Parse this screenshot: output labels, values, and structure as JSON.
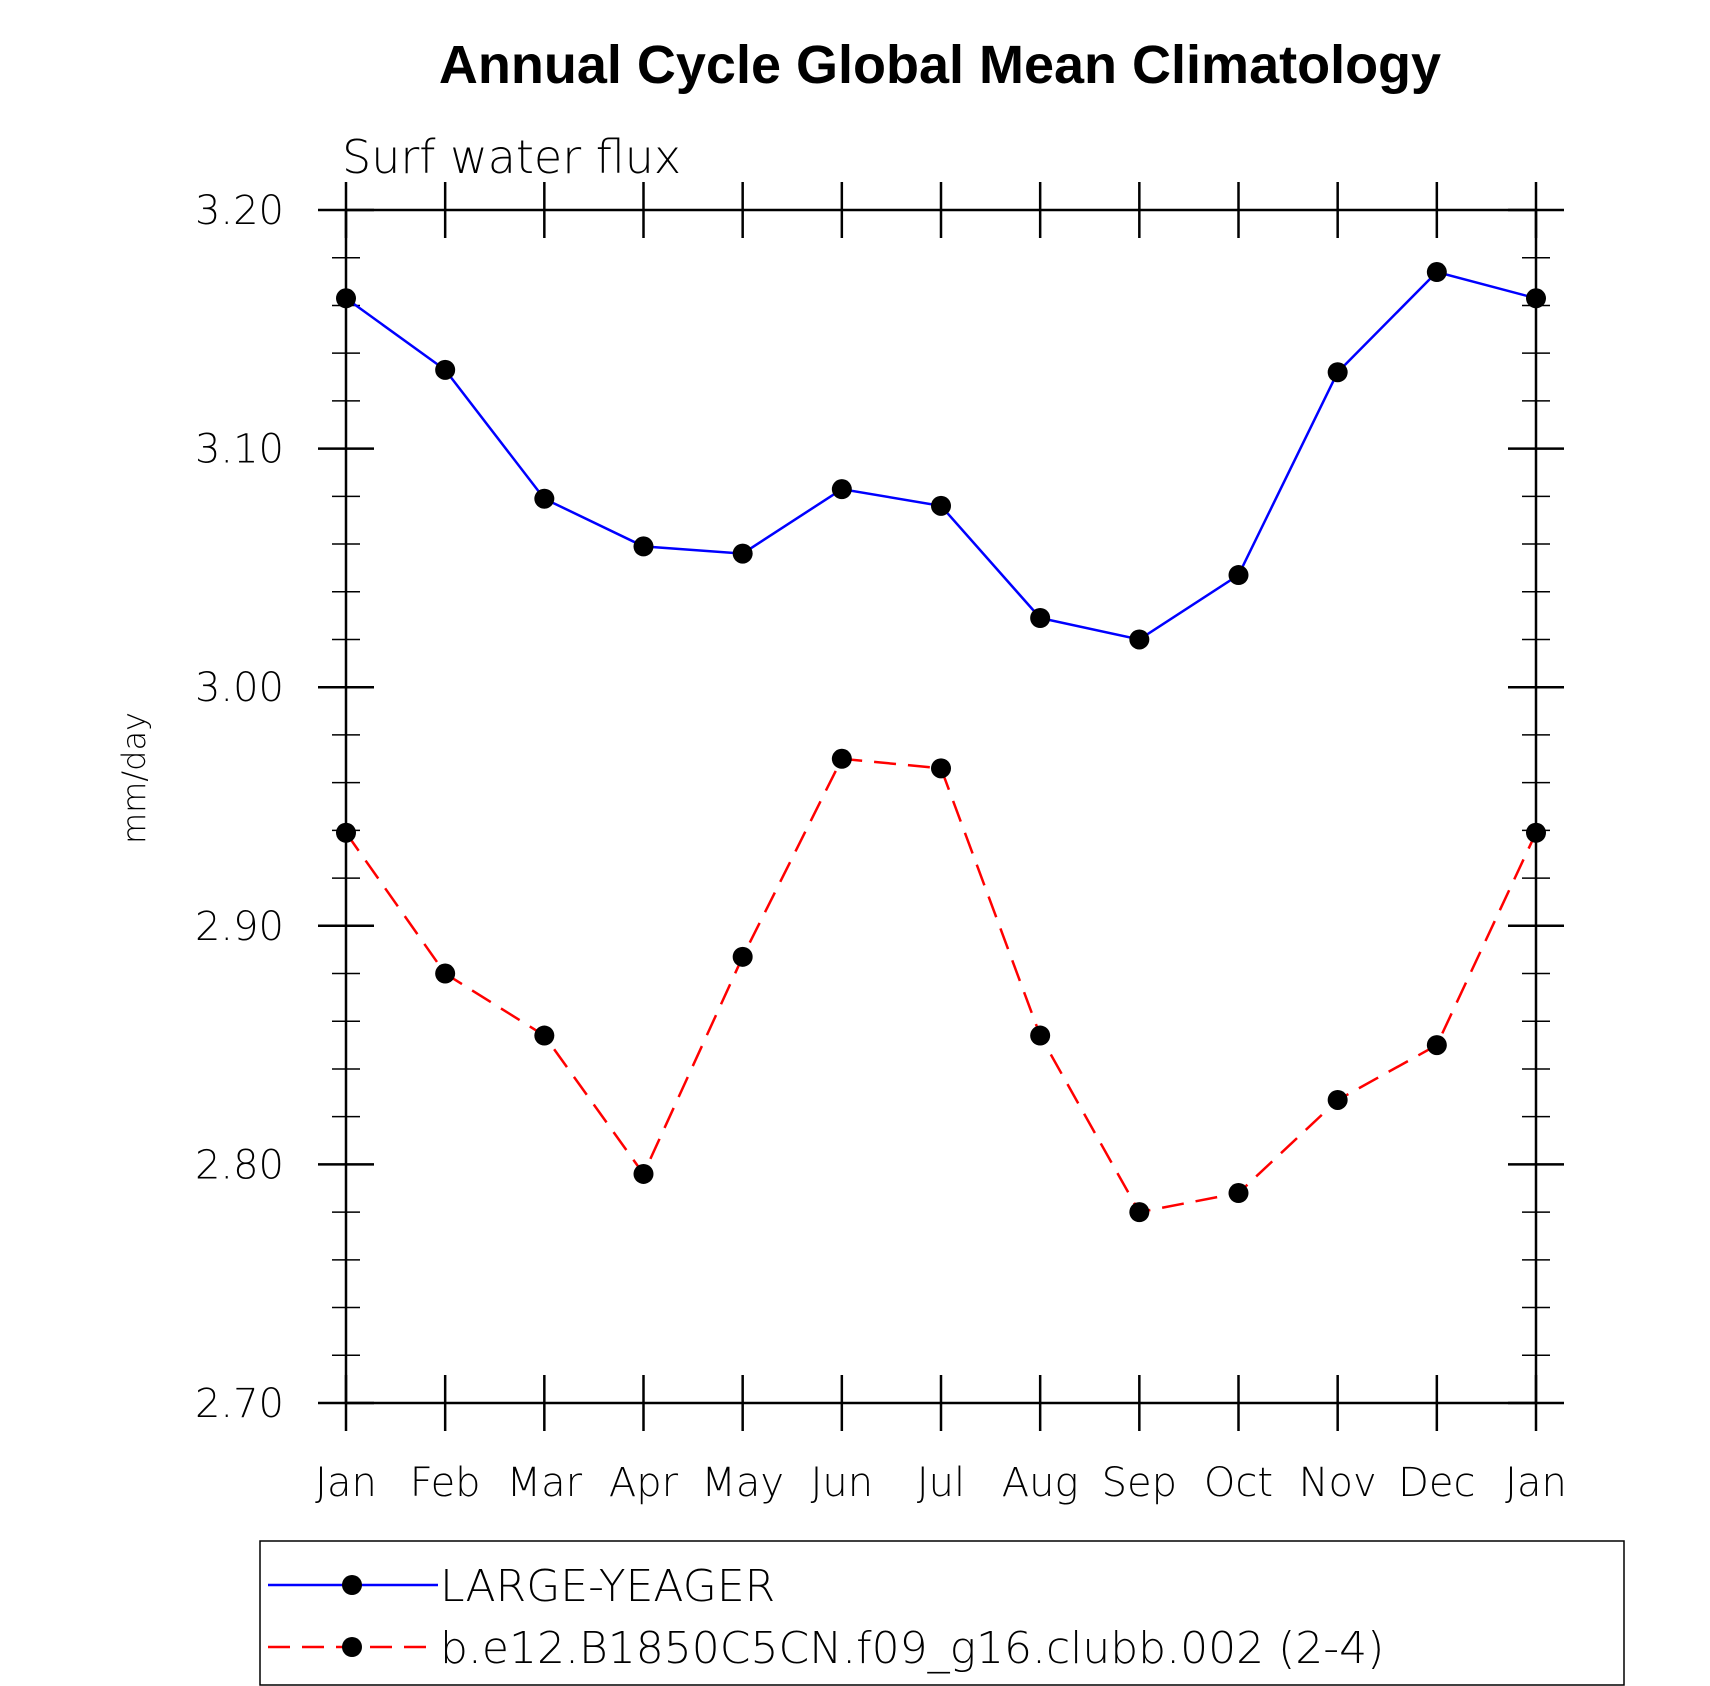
{
  "chart_data": {
    "type": "line",
    "title": "Annual Cycle Global Mean Climatology",
    "subtitle": "Surf water flux",
    "xlabel": "",
    "ylabel": "mm/day",
    "categories": [
      "Jan",
      "Feb",
      "Mar",
      "Apr",
      "May",
      "Jun",
      "Jul",
      "Aug",
      "Sep",
      "Oct",
      "Nov",
      "Dec",
      "Jan"
    ],
    "yticks": [
      "2.70",
      "2.80",
      "2.90",
      "3.00",
      "3.10",
      "3.20"
    ],
    "ylim": [
      2.7,
      3.2
    ],
    "grid": false,
    "legend_position": "bottom",
    "series": [
      {
        "name": "LARGE-YEAGER",
        "color": "#0000ff",
        "line_style": "solid",
        "marker": "filled-circle",
        "values": [
          3.163,
          3.133,
          3.079,
          3.059,
          3.056,
          3.083,
          3.076,
          3.029,
          3.02,
          3.047,
          3.132,
          3.174,
          3.163
        ]
      },
      {
        "name": "b.e12.B1850C5CN.f09_g16.clubb.002 (2-4)",
        "color": "#ff0000",
        "line_style": "dashed",
        "marker": "filled-circle",
        "values": [
          2.939,
          2.88,
          2.854,
          2.796,
          2.887,
          2.97,
          2.966,
          2.854,
          2.78,
          2.788,
          2.827,
          2.85,
          2.939
        ]
      }
    ]
  }
}
